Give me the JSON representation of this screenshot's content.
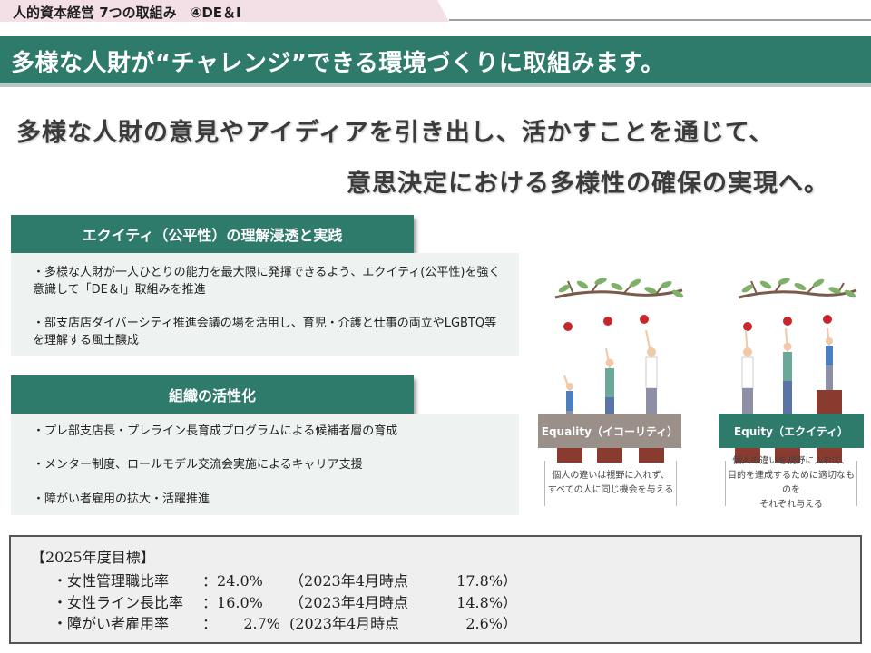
{
  "header": {
    "title": "人的資本経営 7つの取組み　④DE＆I"
  },
  "banner": {
    "text": "多様な人財が“チャレンジ”できる環境づくりに取組みます。"
  },
  "headline": {
    "line1": "多様な人財の意見やアイディアを引き出し、活かすことを通じて、",
    "line2": "意思決定における多様性の確保の実現へ。"
  },
  "sections": [
    {
      "heading": "エクイティ（公平性）の理解浸透と実践",
      "items": [
        "・多様な人財が一人ひとりの能力を最大限に発揮できるよう、エクイティ(公平性)を強く意識して「DE＆I」取組みを推進",
        "・部支店店ダイバーシティ推進会議の場を活用し、育児・介護と仕事の両立やLGBTQ等を理解する風土醸成"
      ]
    },
    {
      "heading": "組織の活性化",
      "items": [
        "・プレ部支店長・プレライン長育成プログラムによる候補者層の育成",
        "・メンター制度、ロールモデル交流会実施によるキャリア支援",
        "・障がい者雇用の拡大・活躍推進"
      ]
    }
  ],
  "illustration": {
    "equality": {
      "label": "Equality（イコーリティ）",
      "caption_line1": "個人の違いは視野に入れず、",
      "caption_line2": "すべての人に同じ機会を与える",
      "color": "#9a8f89"
    },
    "equity": {
      "label": "Equity（エクイティ）",
      "caption_line1": "個人の違いを視野に入れて、",
      "caption_line2": "目的を達成するために適切なものを",
      "caption_line3": "それぞれ与える",
      "color": "#2e7a6b"
    }
  },
  "targets": {
    "title": "【2025年度目標】",
    "rows": [
      {
        "label": "・女性管理職比率",
        "sep": "：",
        "value": "24.0%",
        "ref": "（2023年4月時点",
        "ref_value": "17.8%",
        "close": "）"
      },
      {
        "label": "・女性ライン長比率",
        "sep": "：",
        "value": "16.0%",
        "ref": "（2023年4月時点",
        "ref_value": "14.8%",
        "close": "）"
      },
      {
        "label": "・障がい者雇用率",
        "sep": "：",
        "value": "2.7%",
        "ref": "(2023年4月時点",
        "ref_value": "2.6%",
        "close": "）"
      }
    ]
  },
  "colors": {
    "accent": "#2e7a6b",
    "header_bg": "#f3dfe6",
    "section_bg": "#eef3f2"
  }
}
